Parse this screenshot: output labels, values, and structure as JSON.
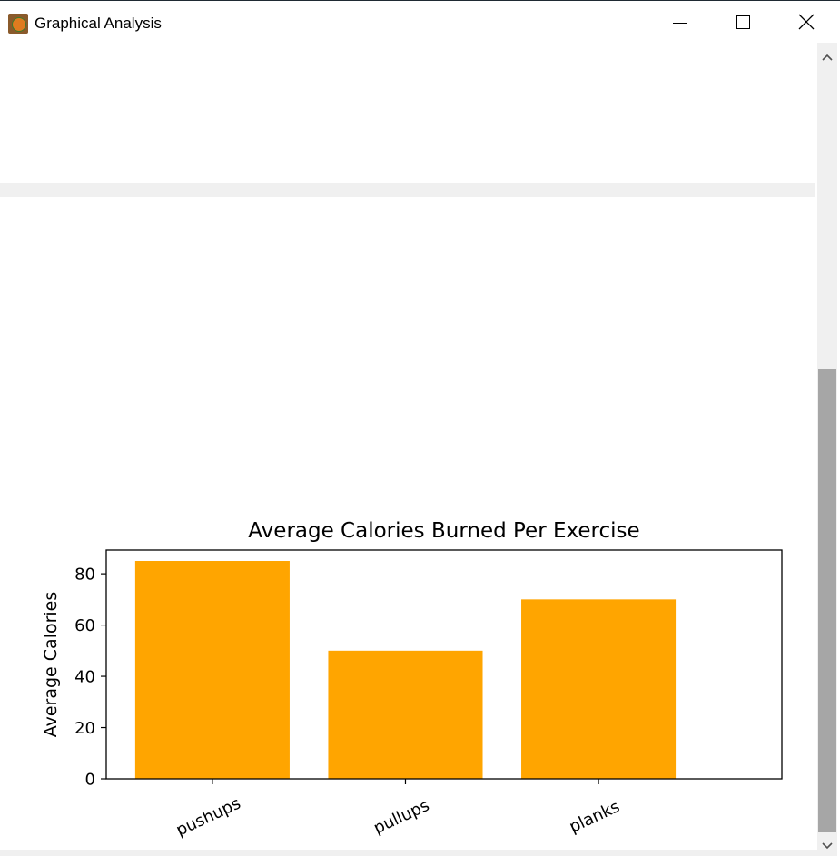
{
  "window": {
    "title": "Graphical Analysis",
    "icon": "app-icon",
    "controls": [
      "minimize-icon",
      "maximize-icon",
      "close-icon"
    ]
  },
  "chart_data": {
    "type": "bar",
    "title": "Average Calories Burned Per Exercise",
    "xlabel": "",
    "ylabel": "Average Calories",
    "categories": [
      "pushups",
      "pullups",
      "planks"
    ],
    "values": [
      85,
      50,
      70
    ],
    "ylim": [
      0,
      89.25
    ],
    "yticks": [
      0,
      20,
      40,
      60,
      80
    ],
    "bar_color": "#ffa500",
    "grid": false
  }
}
